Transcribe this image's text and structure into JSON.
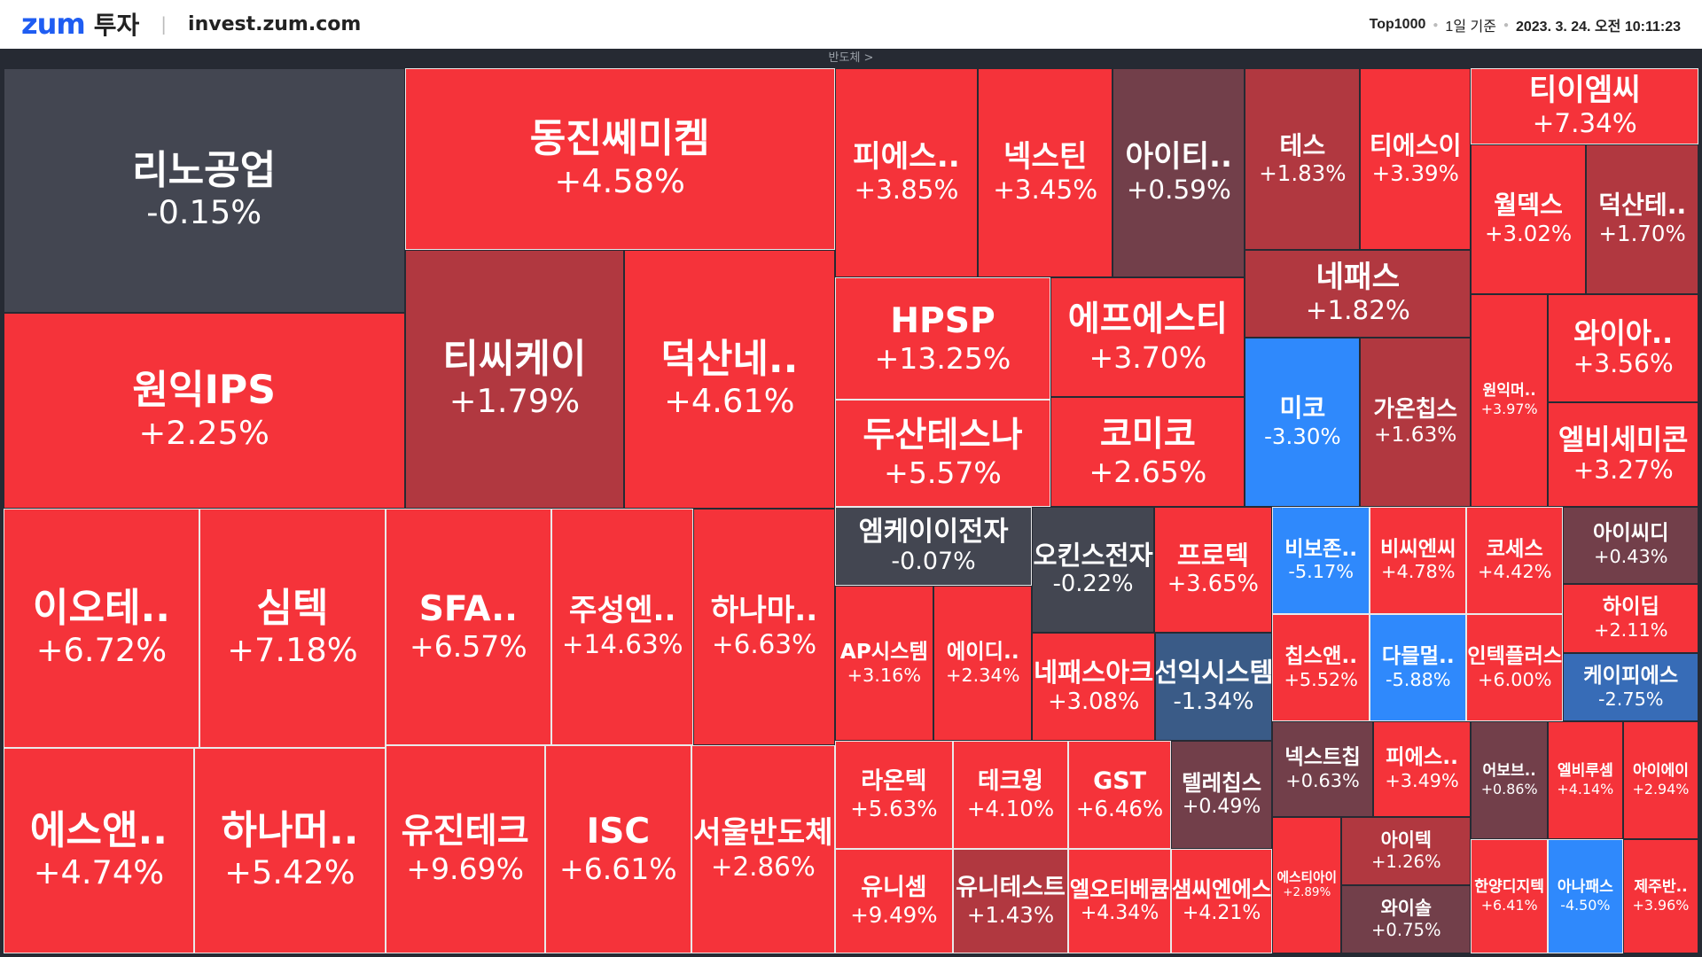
{
  "header": {
    "logo_brand": "zum",
    "logo_service": "투자",
    "separator": "|",
    "url": "invest.zum.com",
    "scope": "Top1000",
    "period": "1일 기준",
    "timestamp": "2023. 3. 24. 오전 10:11:23"
  },
  "sector": {
    "label": "반도체 >"
  },
  "colors": {
    "up_strong": "#f5333a",
    "up_mid": "#b13840",
    "up_weak": "#723f4a",
    "flat": "#434651",
    "down_strong": "#2f89fc",
    "down_mid": "#376cb7",
    "down_weak": "#3a5b87",
    "background": "#262a33",
    "brand": "#1f5df2"
  },
  "tiles": [
    {
      "name": "리노공업",
      "change": "-0.15%"
    },
    {
      "name": "원익IPS",
      "change": "+2.25%"
    },
    {
      "name": "동진쎄미켐",
      "change": "+4.58%"
    },
    {
      "name": "티씨케이",
      "change": "+1.79%"
    },
    {
      "name": "덕산네..",
      "change": "+4.61%"
    },
    {
      "name": "이오테..",
      "change": "+6.72%"
    },
    {
      "name": "심텍",
      "change": "+7.18%"
    },
    {
      "name": "에스앤..",
      "change": "+4.74%"
    },
    {
      "name": "하나머..",
      "change": "+5.42%"
    },
    {
      "name": "SFA..",
      "change": "+6.57%"
    },
    {
      "name": "주성엔..",
      "change": "+14.63%"
    },
    {
      "name": "하나마..",
      "change": "+6.63%"
    },
    {
      "name": "유진테크",
      "change": "+9.69%"
    },
    {
      "name": "ISC",
      "change": "+6.61%"
    },
    {
      "name": "서울반도체",
      "change": "+2.86%"
    },
    {
      "name": "피에스..",
      "change": "+3.85%"
    },
    {
      "name": "넥스틴",
      "change": "+3.45%"
    },
    {
      "name": "아이티..",
      "change": "+0.59%"
    },
    {
      "name": "HPSP",
      "change": "+13.25%"
    },
    {
      "name": "두산테스나",
      "change": "+5.57%"
    },
    {
      "name": "에프에스티",
      "change": "+3.70%"
    },
    {
      "name": "코미코",
      "change": "+2.65%"
    },
    {
      "name": "테스",
      "change": "+1.83%"
    },
    {
      "name": "티에스이",
      "change": "+3.39%"
    },
    {
      "name": "네패스",
      "change": "+1.82%"
    },
    {
      "name": "미코",
      "change": "-3.30%"
    },
    {
      "name": "가온칩스",
      "change": "+1.63%"
    },
    {
      "name": "티이엠씨",
      "change": "+7.34%"
    },
    {
      "name": "월덱스",
      "change": "+3.02%"
    },
    {
      "name": "덕산테..",
      "change": "+1.70%"
    },
    {
      "name": "원익머..",
      "change": "+3.97%"
    },
    {
      "name": "와이아..",
      "change": "+3.56%"
    },
    {
      "name": "엘비세미콘",
      "change": "+3.27%"
    },
    {
      "name": "엠케이이전자",
      "change": "-0.07%"
    },
    {
      "name": "AP시스템",
      "change": "+3.16%"
    },
    {
      "name": "에이디..",
      "change": "+2.34%"
    },
    {
      "name": "오킨스전자",
      "change": "-0.22%"
    },
    {
      "name": "프로텍",
      "change": "+3.65%"
    },
    {
      "name": "네패스아크",
      "change": "+3.08%"
    },
    {
      "name": "선익시스템",
      "change": "-1.34%"
    },
    {
      "name": "라온텍",
      "change": "+5.63%"
    },
    {
      "name": "테크윙",
      "change": "+4.10%"
    },
    {
      "name": "GST",
      "change": "+6.46%"
    },
    {
      "name": "텔레칩스",
      "change": "+0.49%"
    },
    {
      "name": "유니셈",
      "change": "+9.49%"
    },
    {
      "name": "유니테스트",
      "change": "+1.43%"
    },
    {
      "name": "엘오티베큠",
      "change": "+4.34%"
    },
    {
      "name": "샘씨엔에스",
      "change": "+4.21%"
    },
    {
      "name": "비보존..",
      "change": "-5.17%"
    },
    {
      "name": "비씨엔씨",
      "change": "+4.78%"
    },
    {
      "name": "코세스",
      "change": "+4.42%"
    },
    {
      "name": "칩스앤..",
      "change": "+5.52%"
    },
    {
      "name": "다믈멀..",
      "change": "-5.88%"
    },
    {
      "name": "인텍플러스",
      "change": "+6.00%"
    },
    {
      "name": "아이씨디",
      "change": "+0.43%"
    },
    {
      "name": "하이딥",
      "change": "+2.11%"
    },
    {
      "name": "케이피에스",
      "change": "-2.75%"
    },
    {
      "name": "넥스트칩",
      "change": "+0.63%"
    },
    {
      "name": "피에스..",
      "change": "+3.49%"
    },
    {
      "name": "에스티아이",
      "change": "+2.89%"
    },
    {
      "name": "아이텍",
      "change": "+1.26%"
    },
    {
      "name": "와이솔",
      "change": "+0.75%"
    },
    {
      "name": "어보브..",
      "change": "+0.86%"
    },
    {
      "name": "엘비루셈",
      "change": "+4.14%"
    },
    {
      "name": "아이에이",
      "change": "+2.94%"
    },
    {
      "name": "한양디지텍",
      "change": "+6.41%"
    },
    {
      "name": "아나패스",
      "change": "-4.50%"
    },
    {
      "name": "제주반..",
      "change": "+3.96%"
    }
  ]
}
